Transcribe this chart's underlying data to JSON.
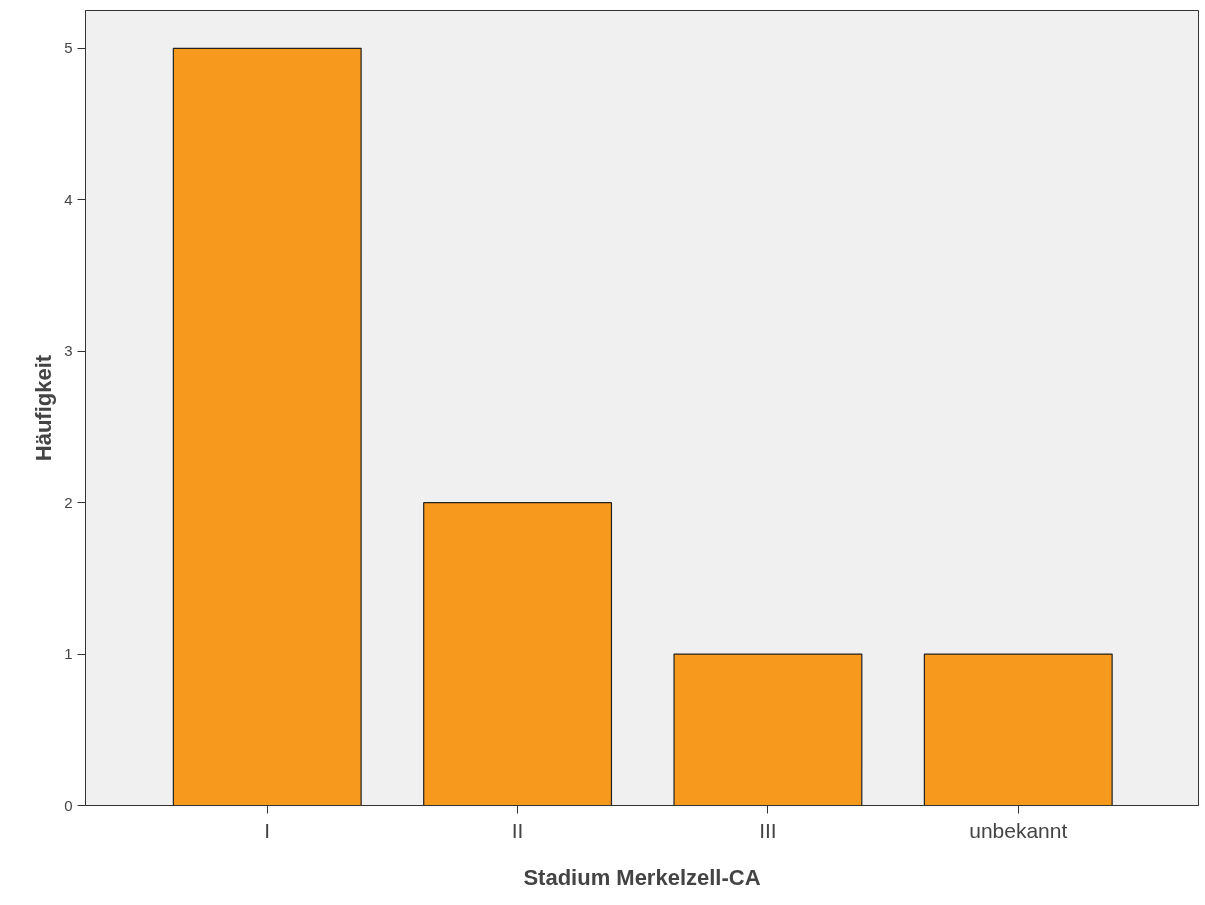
{
  "chart_data": {
    "type": "bar",
    "xlabel": "Stadium Merkelzell-CA",
    "ylabel": "Häufigkeit",
    "categories": [
      "I",
      "II",
      "III",
      "unbekannt"
    ],
    "values": [
      5,
      2,
      1,
      1
    ],
    "color": "#f7991c",
    "ylim": [
      0,
      5.25
    ],
    "yticks": [
      0,
      1,
      2,
      3,
      4,
      5
    ],
    "grid": false
  }
}
